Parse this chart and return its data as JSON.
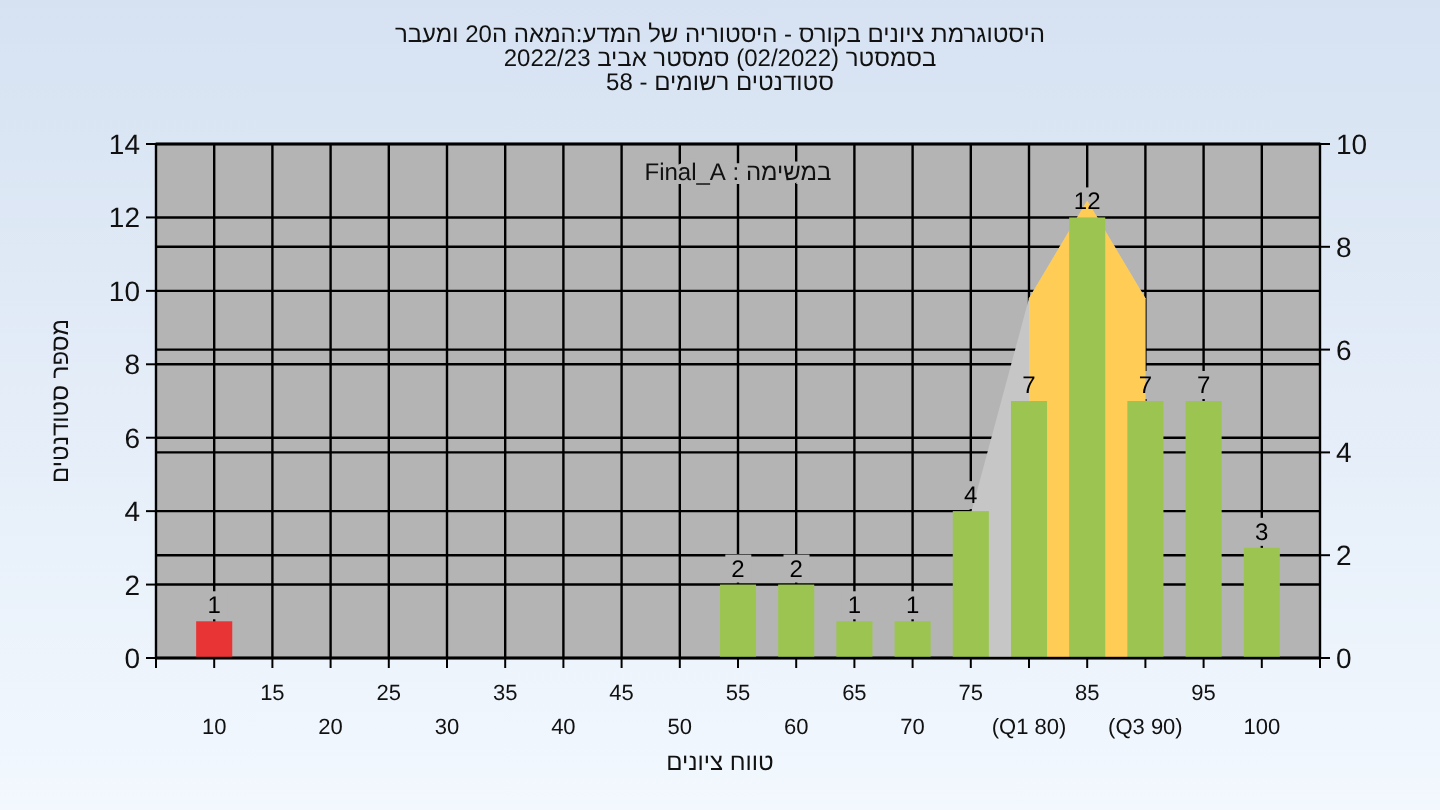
{
  "chart_data": {
    "type": "bar",
    "title": "היסטוגרמת ציונים בקורס - היסטוריה של המדע:המאה ה20 ומעבר",
    "subtitle": "בסמסטר  (02/2022)  סמסטר אביב 2022/23\nסטודנטים רשומים - 58",
    "xlabel": "טווח ציונים",
    "ylabel": "מספר סטודנטים",
    "annotations": [
      "במשימה : Final_A"
    ],
    "categories": [
      "10",
      "15",
      "20",
      "25",
      "30",
      "35",
      "40",
      "45",
      "50",
      "55",
      "60",
      "65",
      "70",
      "75",
      "(Q1 80)",
      "85",
      "(Q3 90)",
      "95",
      "100"
    ],
    "series": [
      {
        "type": "area",
        "axis": "y2",
        "color": "#c6c6c6",
        "values": [
          null,
          null,
          null,
          null,
          null,
          null,
          null,
          null,
          null,
          null,
          null,
          null,
          null,
          2.8,
          7,
          8.9,
          7,
          null,
          null
        ]
      },
      {
        "type": "area",
        "axis": "y2",
        "color": "#ffcc55",
        "values": [
          null,
          null,
          null,
          null,
          null,
          null,
          null,
          null,
          null,
          null,
          null,
          null,
          null,
          null,
          7,
          8.9,
          7,
          null,
          null
        ]
      },
      {
        "data_labels": true,
        "colors": [
          "#e83434",
          null,
          null,
          null,
          null,
          null,
          null,
          null,
          null,
          "#9cc450",
          "#9cc450",
          "#9cc450",
          "#9cc450",
          "#9cc450",
          "#9cc450",
          "#9cc450",
          "#9cc450",
          "#9cc450",
          "#9cc450"
        ],
        "values": [
          1,
          null,
          null,
          null,
          null,
          null,
          null,
          null,
          null,
          2,
          2,
          1,
          1,
          4,
          7,
          12,
          7,
          7,
          3
        ]
      }
    ],
    "ylim": [
      0,
      14
    ],
    "yticks": [
      0,
      2,
      4,
      6,
      8,
      10,
      12,
      14
    ],
    "y2lim": [
      0,
      10
    ],
    "y2ticks": [
      0,
      2,
      4,
      6,
      8,
      10
    ],
    "grid": true
  }
}
